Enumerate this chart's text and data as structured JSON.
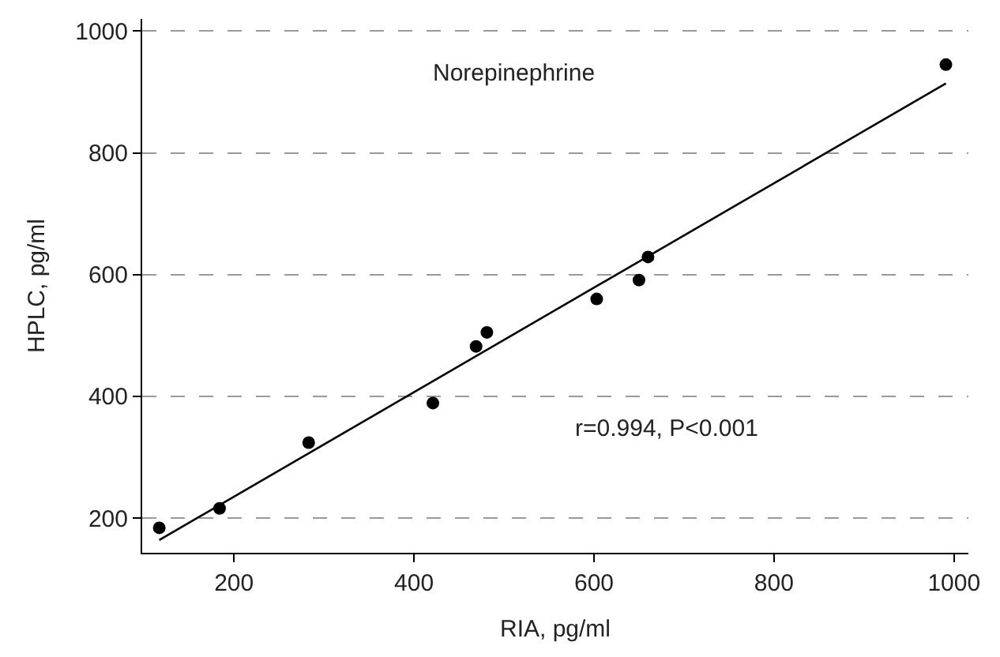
{
  "chart_data": {
    "type": "scatter",
    "xlabel": "RIA, pg/ml",
    "ylabel": "HPLC, pg/ml",
    "annotations": [
      "Norepinephrine",
      "r=0.994, P<0.001"
    ],
    "xlim": [
      98,
      1016
    ],
    "ylim": [
      143,
      1020
    ],
    "xticks": [
      200,
      400,
      600,
      800,
      1000
    ],
    "yticks": [
      200,
      400,
      600,
      800,
      1000
    ],
    "grid": "y",
    "series": [
      {
        "marker": "circle",
        "color": "#000000",
        "x": [
          117,
          184,
          283,
          421,
          469,
          481,
          603,
          650,
          660,
          991
        ],
        "values": [
          184,
          216,
          324,
          389,
          482,
          505,
          560,
          591,
          629,
          945
        ]
      },
      {
        "type": "line",
        "color": "#000000",
        "x": [
          117,
          991
        ],
        "values": [
          164,
          914
        ],
        "line_style": "solid",
        "marker": "none"
      }
    ]
  }
}
